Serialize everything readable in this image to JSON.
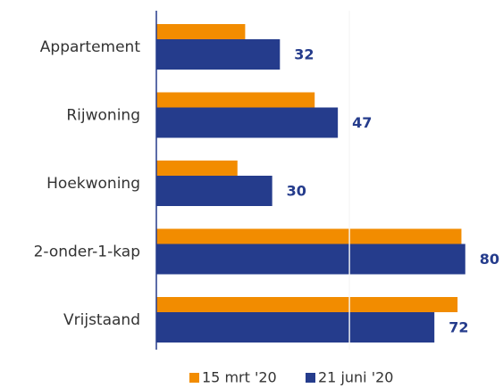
{
  "chart_data": {
    "type": "bar",
    "orientation": "horizontal",
    "categories": [
      "Appartement",
      "Rijwoning",
      "Hoekwoning",
      "2-onder-1-kap",
      "Vrijstaand"
    ],
    "series": [
      {
        "name": "15 mrt '20",
        "color": "#f28c00",
        "values": [
          23,
          41,
          21,
          79,
          78
        ]
      },
      {
        "name": "21 juni '20",
        "color": "#253c8c",
        "values": [
          32,
          47,
          30,
          80,
          72
        ]
      }
    ],
    "xlim": [
      0,
      90
    ],
    "xticks": [
      50
    ],
    "grid": true,
    "legend": "bottom"
  }
}
